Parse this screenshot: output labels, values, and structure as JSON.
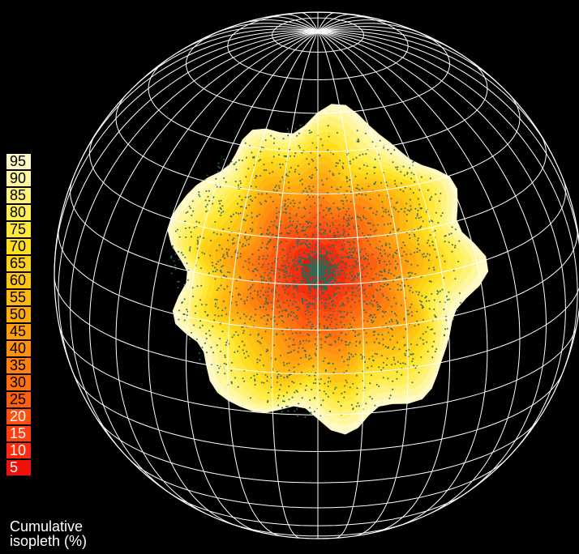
{
  "chart_data": {
    "type": "heatmap",
    "projection": "orthographic-globe",
    "grid": true,
    "legend": {
      "placement": "left",
      "title_line1": "Cumulative",
      "title_line2": "isopleth (%)",
      "entries": [
        {
          "label": "95",
          "color": "#fff9c8"
        },
        {
          "label": "90",
          "color": "#fff6a0"
        },
        {
          "label": "85",
          "color": "#fff27a"
        },
        {
          "label": "80",
          "color": "#ffee55"
        },
        {
          "label": "75",
          "color": "#ffe83a"
        },
        {
          "label": "70",
          "color": "#ffde22"
        },
        {
          "label": "65",
          "color": "#ffd21a"
        },
        {
          "label": "60",
          "color": "#ffc515"
        },
        {
          "label": "55",
          "color": "#ffb812"
        },
        {
          "label": "50",
          "color": "#ffab10"
        },
        {
          "label": "45",
          "color": "#ff9e10"
        },
        {
          "label": "40",
          "color": "#ff9010"
        },
        {
          "label": "35",
          "color": "#ff8010"
        },
        {
          "label": "30",
          "color": "#ff7010"
        },
        {
          "label": "25",
          "color": "#ff6010"
        },
        {
          "label": "20",
          "color": "#ff5010"
        },
        {
          "label": "15",
          "color": "#ff3e10"
        },
        {
          "label": "10",
          "color": "#ff2a0c"
        },
        {
          "label": "5",
          "color": "#f01008"
        }
      ]
    },
    "points_color": "#2e6b55"
  }
}
